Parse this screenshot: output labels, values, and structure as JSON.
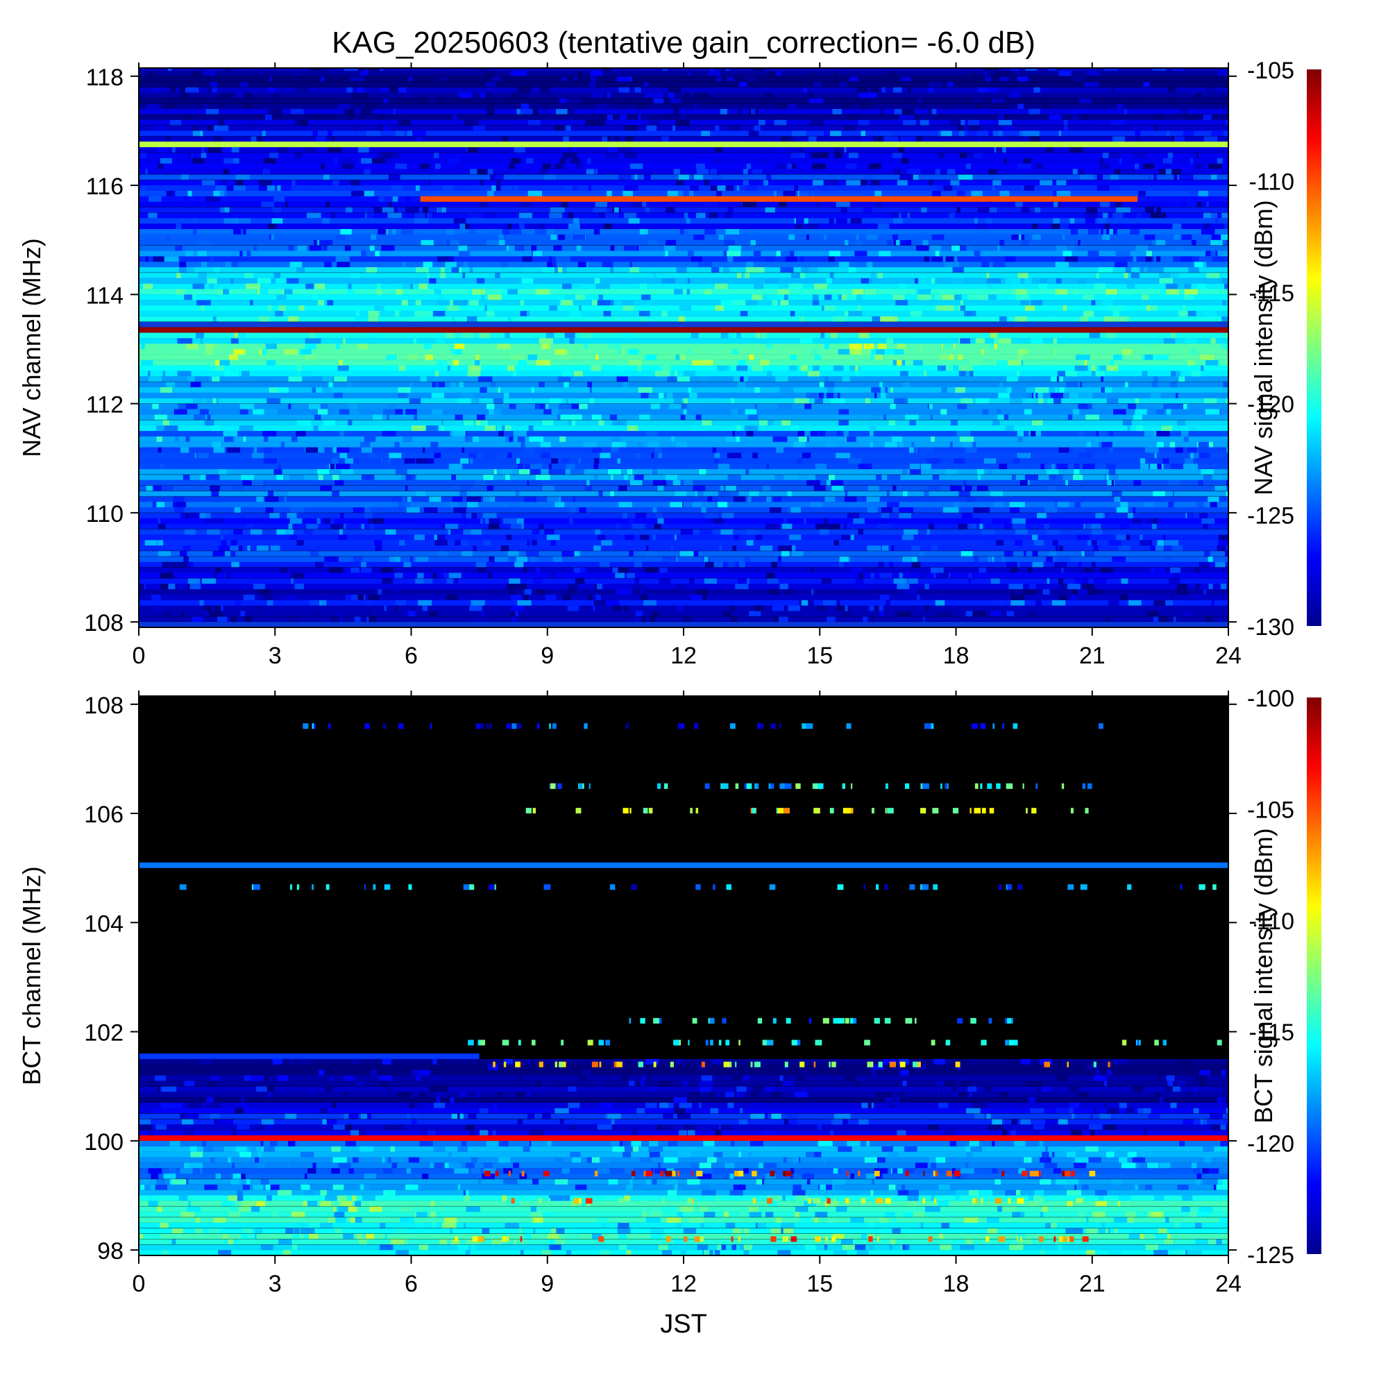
{
  "title": "KAG_20250603 (tentative gain_correction= -6.0 dB)",
  "x_axis_label": "JST",
  "chart_data": [
    {
      "type": "heatmap",
      "name": "NAV",
      "xlabel": "",
      "ylabel": "NAV channel (MHz)",
      "colorbar_label": "NAV signal intensity (dBm)",
      "xlim": [
        0,
        24
      ],
      "ylim": [
        108,
        118
      ],
      "x_ticks": [
        0,
        3,
        6,
        9,
        12,
        15,
        18,
        21,
        24
      ],
      "y_ticks": [
        108,
        110,
        112,
        114,
        116,
        118
      ],
      "colorbar_range": [
        -130,
        -105
      ],
      "colorbar_ticks": [
        -130,
        -125,
        -120,
        -115,
        -110,
        -105
      ],
      "colormap": "jet",
      "background_level": [
        {
          "y": [
            108.0,
            109.0
          ],
          "value": -127.5
        },
        {
          "y": [
            109.0,
            110.0
          ],
          "value": -125.5
        },
        {
          "y": [
            110.0,
            111.5
          ],
          "value": -124.0
        },
        {
          "y": [
            111.5,
            112.5
          ],
          "value": -122.5
        },
        {
          "y": [
            112.5,
            113.3
          ],
          "value": -120.0
        },
        {
          "y": [
            113.5,
            114.5
          ],
          "value": -121.0
        },
        {
          "y": [
            114.5,
            115.2
          ],
          "value": -124.5
        },
        {
          "y": [
            115.2,
            116.5
          ],
          "value": -126.0
        },
        {
          "y": [
            116.5,
            117.2
          ],
          "value": -127.0
        },
        {
          "y": [
            117.2,
            118.2
          ],
          "value": -129.0
        }
      ],
      "signals": [
        {
          "y": 113.35,
          "x": [
            0,
            24
          ],
          "value": -105.5
        },
        {
          "y": 116.75,
          "x": [
            0,
            24
          ],
          "value": -116.0
        },
        {
          "y": 115.75,
          "x": [
            6.2,
            22.0
          ],
          "value": -110.0
        }
      ]
    },
    {
      "type": "heatmap",
      "name": "BCT",
      "xlabel": "JST",
      "ylabel": "BCT channel (MHz)",
      "colorbar_label": "BCT signal intensity (dBm)",
      "xlim": [
        0,
        24
      ],
      "ylim": [
        98,
        108
      ],
      "x_ticks": [
        0,
        3,
        6,
        9,
        12,
        15,
        18,
        21,
        24
      ],
      "y_ticks": [
        98,
        100,
        102,
        104,
        106,
        108
      ],
      "colorbar_range": [
        -125,
        -100
      ],
      "colorbar_ticks": [
        -125,
        -120,
        -115,
        -110,
        -105,
        -100
      ],
      "colormap": "jet",
      "background_level": [
        {
          "y": [
            97.8,
            99.0
          ],
          "value": -115.0
        },
        {
          "y": [
            99.0,
            100.0
          ],
          "value": -118.5
        },
        {
          "y": [
            100.1,
            100.6
          ],
          "value": -121.5
        },
        {
          "y": [
            100.6,
            101.5
          ],
          "value": -124.0
        }
      ],
      "signals": [
        {
          "y": 100.05,
          "x": [
            0,
            24
          ],
          "value": -103.0
        },
        {
          "y": 105.05,
          "x": [
            0,
            24
          ],
          "value": -119.0
        },
        {
          "y": 101.55,
          "x": [
            0,
            7.5
          ],
          "value": -120.5
        }
      ],
      "intermittent_signals": [
        {
          "y": 107.6,
          "x": [
            3.5,
            21.5
          ],
          "value": -121.0
        },
        {
          "y": 106.5,
          "x": [
            9.0,
            21.0
          ],
          "value": -116.0
        },
        {
          "y": 106.05,
          "x": [
            7.5,
            21.5
          ],
          "value": -111.0
        },
        {
          "y": 104.65,
          "x": [
            0.5,
            23.8
          ],
          "value": -119.0
        },
        {
          "y": 102.2,
          "x": [
            10.0,
            19.5
          ],
          "value": -117.0
        },
        {
          "y": 101.8,
          "x": [
            6.8,
            24.0
          ],
          "value": -116.0
        },
        {
          "y": 101.4,
          "x": [
            7.5,
            21.5
          ],
          "value": -110.0
        },
        {
          "y": 99.4,
          "x": [
            7.5,
            21.0
          ],
          "value": -104.0
        },
        {
          "y": 98.9,
          "x": [
            7.5,
            21.0
          ],
          "value": -109.0
        },
        {
          "y": 98.2,
          "x": [
            6.8,
            21.5
          ],
          "value": -107.0
        }
      ]
    }
  ]
}
